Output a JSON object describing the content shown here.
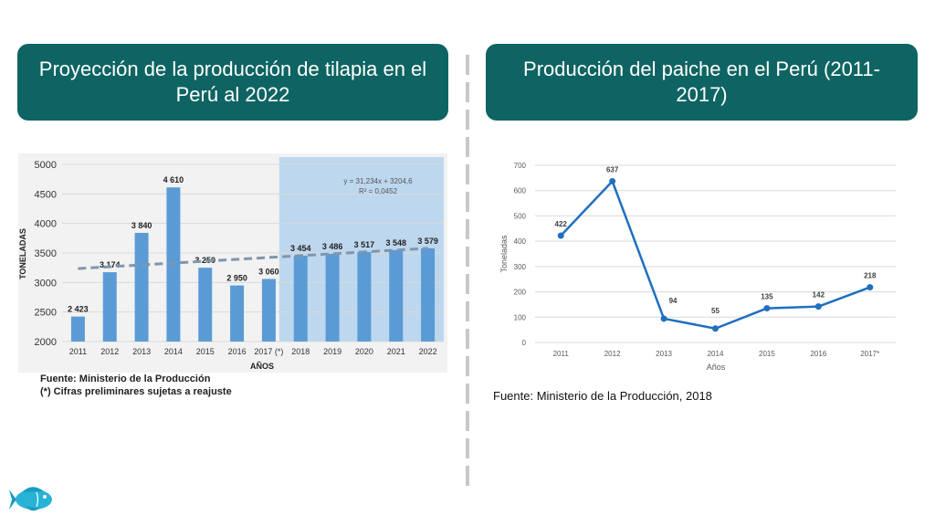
{
  "slide": {
    "left_title": "Proyección de la producción de tilapia en el Perú al 2022",
    "right_title": "Producción del paiche en el Perú (2011-2017)",
    "left_source_line1": "Fuente: Ministerio de la Producción",
    "left_source_line2": "(*) Cifras preliminares sujetas a reajuste",
    "right_source": "Fuente: Ministerio de la Producción, 2018",
    "icon": "fish-icon"
  },
  "chart_data": [
    {
      "type": "bar",
      "title": "",
      "categories": [
        "2011",
        "2012",
        "2013",
        "2014",
        "2015",
        "2016",
        "2017 (*)",
        "2018",
        "2019",
        "2020",
        "2021",
        "2022"
      ],
      "values": [
        2423,
        3174,
        3840,
        4610,
        3250,
        2950,
        3060,
        3454,
        3486,
        3517,
        3548,
        3579
      ],
      "value_labels": [
        "2 423",
        "3 174",
        "3 840",
        "4 610",
        "3 250",
        "2 950",
        "3 060",
        "3 454",
        "3 486",
        "3 517",
        "3 548",
        "3 579"
      ],
      "xlabel": "AÑOS",
      "ylabel": "TONELADAS",
      "ylim": [
        2000,
        5000
      ],
      "yticks": [
        2000,
        2500,
        3000,
        3500,
        4000,
        4500,
        5000
      ],
      "projection_from": "2018",
      "trendline": {
        "slope": 31.234,
        "intercept": 3204.6
      },
      "annotation_equation": "y = 31,234x + 3204,6",
      "annotation_r2": "R² = 0,0452",
      "grid": true,
      "colors": {
        "bar": "#5b9bd5",
        "projection_bg": "#bdd7ee",
        "trend": "#7f96ad"
      }
    },
    {
      "type": "line",
      "title": "",
      "x": [
        "2011",
        "2012",
        "2013",
        "2014",
        "2015",
        "2016",
        "2017*"
      ],
      "values": [
        422,
        637,
        94,
        55,
        135,
        142,
        218
      ],
      "xlabel": "Años",
      "ylabel": "Toneladas",
      "ylim": [
        0,
        700
      ],
      "yticks": [
        0,
        100,
        200,
        300,
        400,
        500,
        600,
        700
      ],
      "grid": true,
      "colors": {
        "line": "#1f6fbf"
      }
    }
  ]
}
